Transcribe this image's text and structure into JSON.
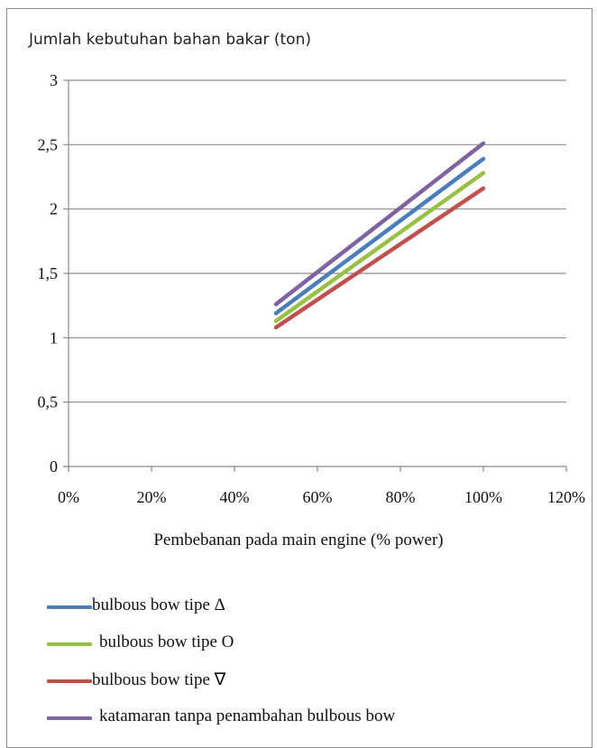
{
  "chart_data": {
    "type": "line",
    "ylabel": "Jumlah kebutuhan bahan bakar (ton)",
    "xlabel": "Pembebanan pada main engine (% power)",
    "xlim": [
      0,
      120
    ],
    "ylim": [
      0,
      3
    ],
    "x_ticks": [
      "0%",
      "20%",
      "40%",
      "60%",
      "80%",
      "100%",
      "120%"
    ],
    "y_ticks": [
      "0",
      "0,5",
      "1",
      "1,5",
      "2",
      "2,5",
      "3"
    ],
    "grid": "horizontal",
    "legend_position": "bottom",
    "series": [
      {
        "name": "bulbous bow tipe Δ",
        "color": "#4a7ebb",
        "x": [
          50,
          100
        ],
        "y": [
          1.19,
          2.39
        ]
      },
      {
        "name": "bulbous bow tipe O",
        "color": "#98c045",
        "x": [
          50,
          100
        ],
        "y": [
          1.13,
          2.28
        ]
      },
      {
        "name": "bulbous bow tipe ∇",
        "color": "#c0504d",
        "x": [
          50,
          100
        ],
        "y": [
          1.08,
          2.16
        ]
      },
      {
        "name": "katamaran tanpa penambahan bulbous bow",
        "color": "#7f62a2",
        "x": [
          50,
          100
        ],
        "y": [
          1.26,
          2.51
        ]
      }
    ]
  }
}
